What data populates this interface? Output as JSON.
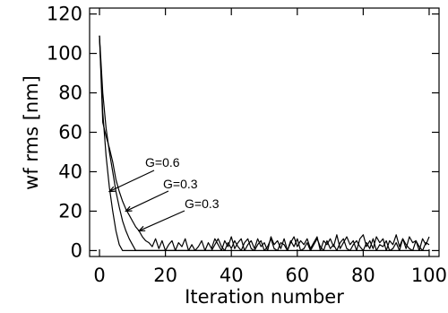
{
  "chart_data": {
    "type": "line",
    "xlabel": "Iteration number",
    "ylabel": "wf  rms  [nm]",
    "xlim": [
      -3,
      103
    ],
    "ylim": [
      -3,
      123
    ],
    "xticks": [
      0,
      20,
      40,
      60,
      80,
      100
    ],
    "yticks": [
      0,
      20,
      40,
      60,
      80,
      100,
      120
    ],
    "grid": false,
    "series": [
      {
        "x": [
          0,
          1,
          2,
          3,
          4,
          5,
          6,
          7,
          8,
          100
        ],
        "values": [
          109,
          70,
          48,
          32,
          20,
          10,
          3,
          0,
          0,
          0
        ]
      },
      {
        "x": [
          0,
          1,
          2,
          3,
          4,
          5,
          6,
          7,
          8,
          9,
          10,
          11,
          12,
          13,
          14,
          15,
          16,
          17,
          18,
          19,
          20,
          21,
          22,
          23,
          24,
          25,
          26,
          27,
          28,
          29,
          30,
          31,
          32,
          33,
          34,
          35,
          36,
          37,
          38,
          39,
          40,
          41,
          42,
          43,
          44,
          45,
          46,
          47,
          48,
          49,
          50,
          51,
          52,
          53,
          54,
          55,
          56,
          57,
          58,
          59,
          60,
          61,
          62,
          63,
          64,
          65,
          66,
          67,
          68,
          69,
          70,
          71,
          72,
          73,
          74,
          75,
          76,
          77,
          78,
          79,
          80,
          81,
          82,
          83,
          84,
          85,
          86,
          87,
          88,
          89,
          90,
          91,
          92,
          93,
          94,
          95,
          96,
          97,
          98,
          99,
          100
        ],
        "values": [
          109,
          80,
          62,
          50,
          40,
          30,
          22,
          15,
          10,
          6,
          3,
          0,
          0,
          0,
          0,
          0,
          0,
          0,
          0,
          0,
          0,
          0,
          0,
          0,
          0,
          0,
          0,
          0,
          0,
          0,
          0,
          0,
          0,
          0,
          0,
          3,
          6,
          2,
          0,
          4,
          1,
          5,
          2,
          0,
          4,
          6,
          1,
          0,
          3,
          5,
          0,
          2,
          6,
          1,
          0,
          4,
          3,
          0,
          5,
          2,
          6,
          0,
          1,
          4,
          0,
          3,
          6,
          2,
          0,
          5,
          1,
          3,
          0,
          4,
          6,
          1,
          0,
          3,
          5,
          2,
          0,
          4,
          1,
          6,
          0,
          3,
          2,
          5,
          0,
          1,
          4,
          0,
          6,
          3,
          1,
          0,
          5,
          2,
          0,
          4,
          3
        ]
      },
      {
        "x": [
          0,
          1,
          2,
          3,
          4,
          5,
          6,
          7,
          8,
          9,
          10,
          11,
          12,
          13,
          14,
          15,
          16,
          17,
          18,
          19,
          20,
          21,
          22,
          23,
          24,
          25,
          26,
          27,
          28,
          29,
          30,
          31,
          32,
          33,
          34,
          35,
          36,
          37,
          38,
          39,
          40,
          41,
          42,
          43,
          44,
          45,
          46,
          47,
          48,
          49,
          50,
          51,
          52,
          53,
          54,
          55,
          56,
          57,
          58,
          59,
          60,
          61,
          62,
          63,
          64,
          65,
          66,
          67,
          68,
          69,
          70,
          71,
          72,
          73,
          74,
          75,
          76,
          77,
          78,
          79,
          80,
          81,
          82,
          83,
          84,
          85,
          86,
          87,
          88,
          89,
          90,
          91,
          92,
          93,
          94,
          95,
          96,
          97,
          98,
          99,
          100
        ],
        "values": [
          109,
          65,
          58,
          52,
          45,
          36,
          30,
          25,
          21,
          18,
          15,
          12,
          10,
          7,
          5,
          4,
          2,
          6,
          1,
          5,
          0,
          3,
          5,
          0,
          4,
          2,
          6,
          0,
          3,
          0,
          2,
          5,
          0,
          4,
          1,
          6,
          3,
          0,
          5,
          2,
          7,
          1,
          4,
          6,
          0,
          3,
          5,
          1,
          6,
          2,
          4,
          0,
          7,
          3,
          5,
          1,
          6,
          0,
          4,
          7,
          2,
          5,
          3,
          6,
          1,
          4,
          7,
          0,
          5,
          3,
          6,
          2,
          8,
          1,
          4,
          7,
          3,
          5,
          0,
          6,
          8,
          2,
          5,
          1,
          7,
          4,
          6,
          0,
          5,
          3,
          8,
          2,
          6,
          1,
          7,
          4,
          5,
          0,
          6,
          3,
          7
        ]
      }
    ],
    "annotations": [
      {
        "text": "G=0.6",
        "target": [
          3,
          30
        ]
      },
      {
        "text": "G=0.3",
        "target": [
          8,
          20
        ]
      },
      {
        "text": "G=0.3",
        "target": [
          12,
          10
        ]
      }
    ]
  }
}
